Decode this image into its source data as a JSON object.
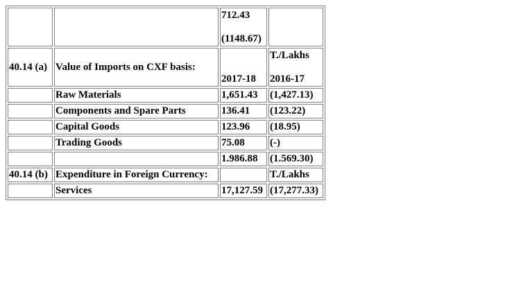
{
  "rows": {
    "r0": {
      "c1": "",
      "c2": "",
      "c3_line1": "712.43",
      "c3_line2": "(1148.67)",
      "c4": ""
    },
    "r1": {
      "c1": "40.14 (a)",
      "c2": "Value of Imports on CXF basis:",
      "c3": "2017-18",
      "c4_line1": "T./Lakhs",
      "c4_line2": "2016-17"
    },
    "r2": {
      "c1": "",
      "c2": "Raw Materials",
      "c3": "1,651.43",
      "c4": "(1,427.13)"
    },
    "r3": {
      "c1": "",
      "c2": "Components and Spare Parts",
      "c3": "136.41",
      "c4": "(123.22)"
    },
    "r4": {
      "c1": "",
      "c2": "Capital Goods",
      "c3": "123.96",
      "c4": "(18.95)"
    },
    "r5": {
      "c1": "",
      "c2": "Trading Goods",
      "c3": "75.08",
      "c4": "(-)"
    },
    "r6": {
      "c1": "",
      "c2": "",
      "c3": "1.986.88",
      "c4": "(1.569.30)"
    },
    "r7": {
      "c1": "40.14 (b)",
      "c2": "Expenditure in Foreign Currency:",
      "c3": "",
      "c4": "T./Lakhs"
    },
    "r8": {
      "c1": "",
      "c2": "Services",
      "c3": "17,127.59",
      "c4": "(17,277.33)"
    }
  }
}
